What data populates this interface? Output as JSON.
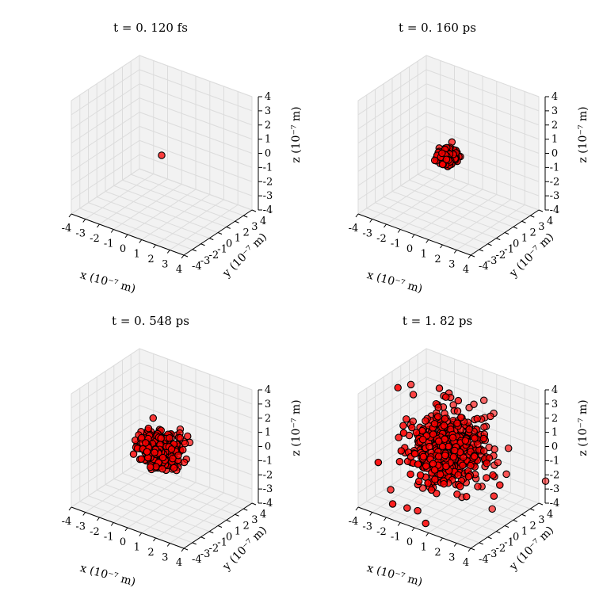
{
  "chart_data": [
    {
      "type": "scatter",
      "title": "t = 0. 120 fs",
      "xlabel": "x (10⁻⁷ m)",
      "ylabel": "y (10⁻⁷ m)",
      "zlabel": "z (10⁻⁷ m)",
      "xlim": [
        -4,
        4
      ],
      "ylim": [
        -4,
        4
      ],
      "zlim": [
        -4,
        4
      ],
      "ticks": [
        "-4",
        "-3",
        "-2",
        "-1",
        "0",
        "1",
        "2",
        "3",
        "4"
      ],
      "grid": true,
      "marker_color": "#ff0000",
      "series": [
        {
          "spread": 0.08,
          "n_points": 1,
          "center": [
            0,
            0,
            0
          ]
        }
      ]
    },
    {
      "type": "scatter",
      "title": "t = 0. 160 ps",
      "xlabel": "x (10⁻⁷ m)",
      "ylabel": "y (10⁻⁷ m)",
      "zlabel": "z (10⁻⁷ m)",
      "xlim": [
        -4,
        4
      ],
      "ylim": [
        -4,
        4
      ],
      "zlim": [
        -4,
        4
      ],
      "ticks": [
        "-4",
        "-3",
        "-2",
        "-1",
        "0",
        "1",
        "2",
        "3",
        "4"
      ],
      "grid": true,
      "marker_color": "#ff0000",
      "series": [
        {
          "spread": 0.75,
          "n_points": 140,
          "center": [
            0,
            0,
            0
          ]
        }
      ]
    },
    {
      "type": "scatter",
      "title": "t = 0. 548 ps",
      "xlabel": "x (10⁻⁷ m)",
      "ylabel": "y (10⁻⁷ m)",
      "zlabel": "z (10⁻⁷ m)",
      "xlim": [
        -4,
        4
      ],
      "ylim": [
        -4,
        4
      ],
      "zlim": [
        -4,
        4
      ],
      "ticks": [
        "-4",
        "-3",
        "-2",
        "-1",
        "0",
        "1",
        "2",
        "3",
        "4"
      ],
      "grid": true,
      "marker_color": "#ff0000",
      "series": [
        {
          "spread": 1.6,
          "n_points": 320,
          "center": [
            0,
            0,
            0
          ]
        }
      ]
    },
    {
      "type": "scatter",
      "title": "t = 1. 82 ps",
      "xlabel": "x (10⁻⁷ m)",
      "ylabel": "y (10⁻⁷ m)",
      "zlabel": "z (10⁻⁷ m)",
      "xlim": [
        -4,
        4
      ],
      "ylim": [
        -4,
        4
      ],
      "zlim": [
        -4,
        4
      ],
      "ticks": [
        "-4",
        "-3",
        "-2",
        "-1",
        "0",
        "1",
        "2",
        "3",
        "4"
      ],
      "grid": true,
      "marker_color": "#ff0000",
      "series": [
        {
          "spread": 3.2,
          "n_points": 520,
          "center": [
            0,
            0,
            0
          ],
          "outliers": true
        }
      ]
    }
  ]
}
